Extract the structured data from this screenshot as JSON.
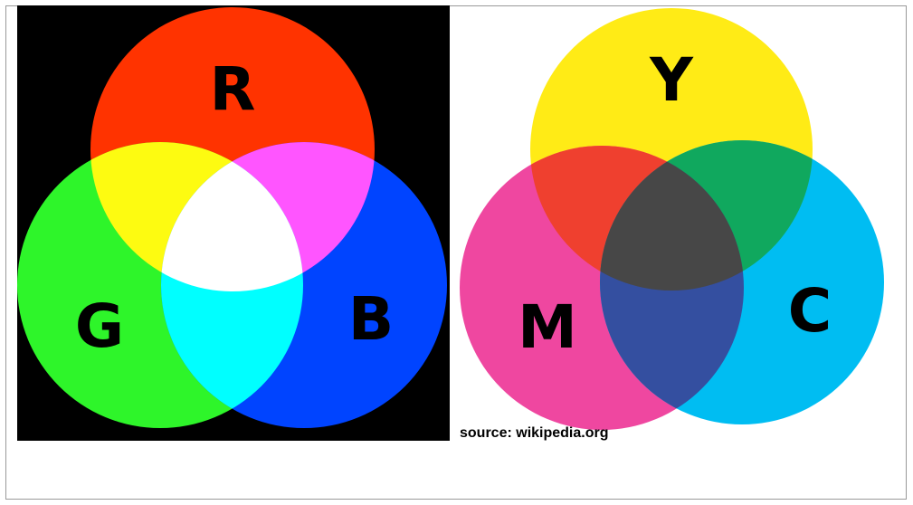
{
  "left": {
    "labels": [
      "R",
      "G",
      "B"
    ],
    "source": "source: wikipedia.org"
  },
  "right": {
    "labels": [
      "Y",
      "M",
      "C"
    ],
    "source": "source: wikipedia.org"
  }
}
